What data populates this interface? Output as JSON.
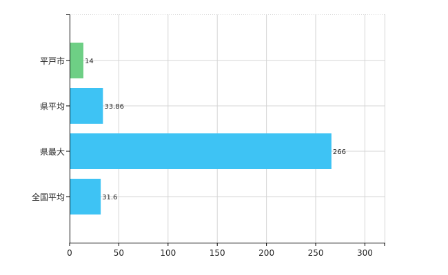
{
  "chart_data": {
    "type": "bar",
    "orientation": "horizontal",
    "categories": [
      "平戸市",
      "県平均",
      "県最大",
      "全国平均"
    ],
    "values": [
      14,
      33.86,
      266,
      31.6
    ],
    "value_labels": [
      "14",
      "33.86",
      "266",
      "31.6"
    ],
    "bar_colors": [
      "#6ecf85",
      "#3ec3f4",
      "#3ec3f4",
      "#3ec3f4"
    ],
    "xlim": [
      0,
      320
    ],
    "x_ticks": [
      0,
      50,
      100,
      150,
      200,
      250,
      300
    ],
    "x_tick_labels": [
      "0",
      "50",
      "100",
      "150",
      "200",
      "250",
      "300"
    ],
    "grid": true,
    "title": "",
    "xlabel": "",
    "ylabel": ""
  }
}
